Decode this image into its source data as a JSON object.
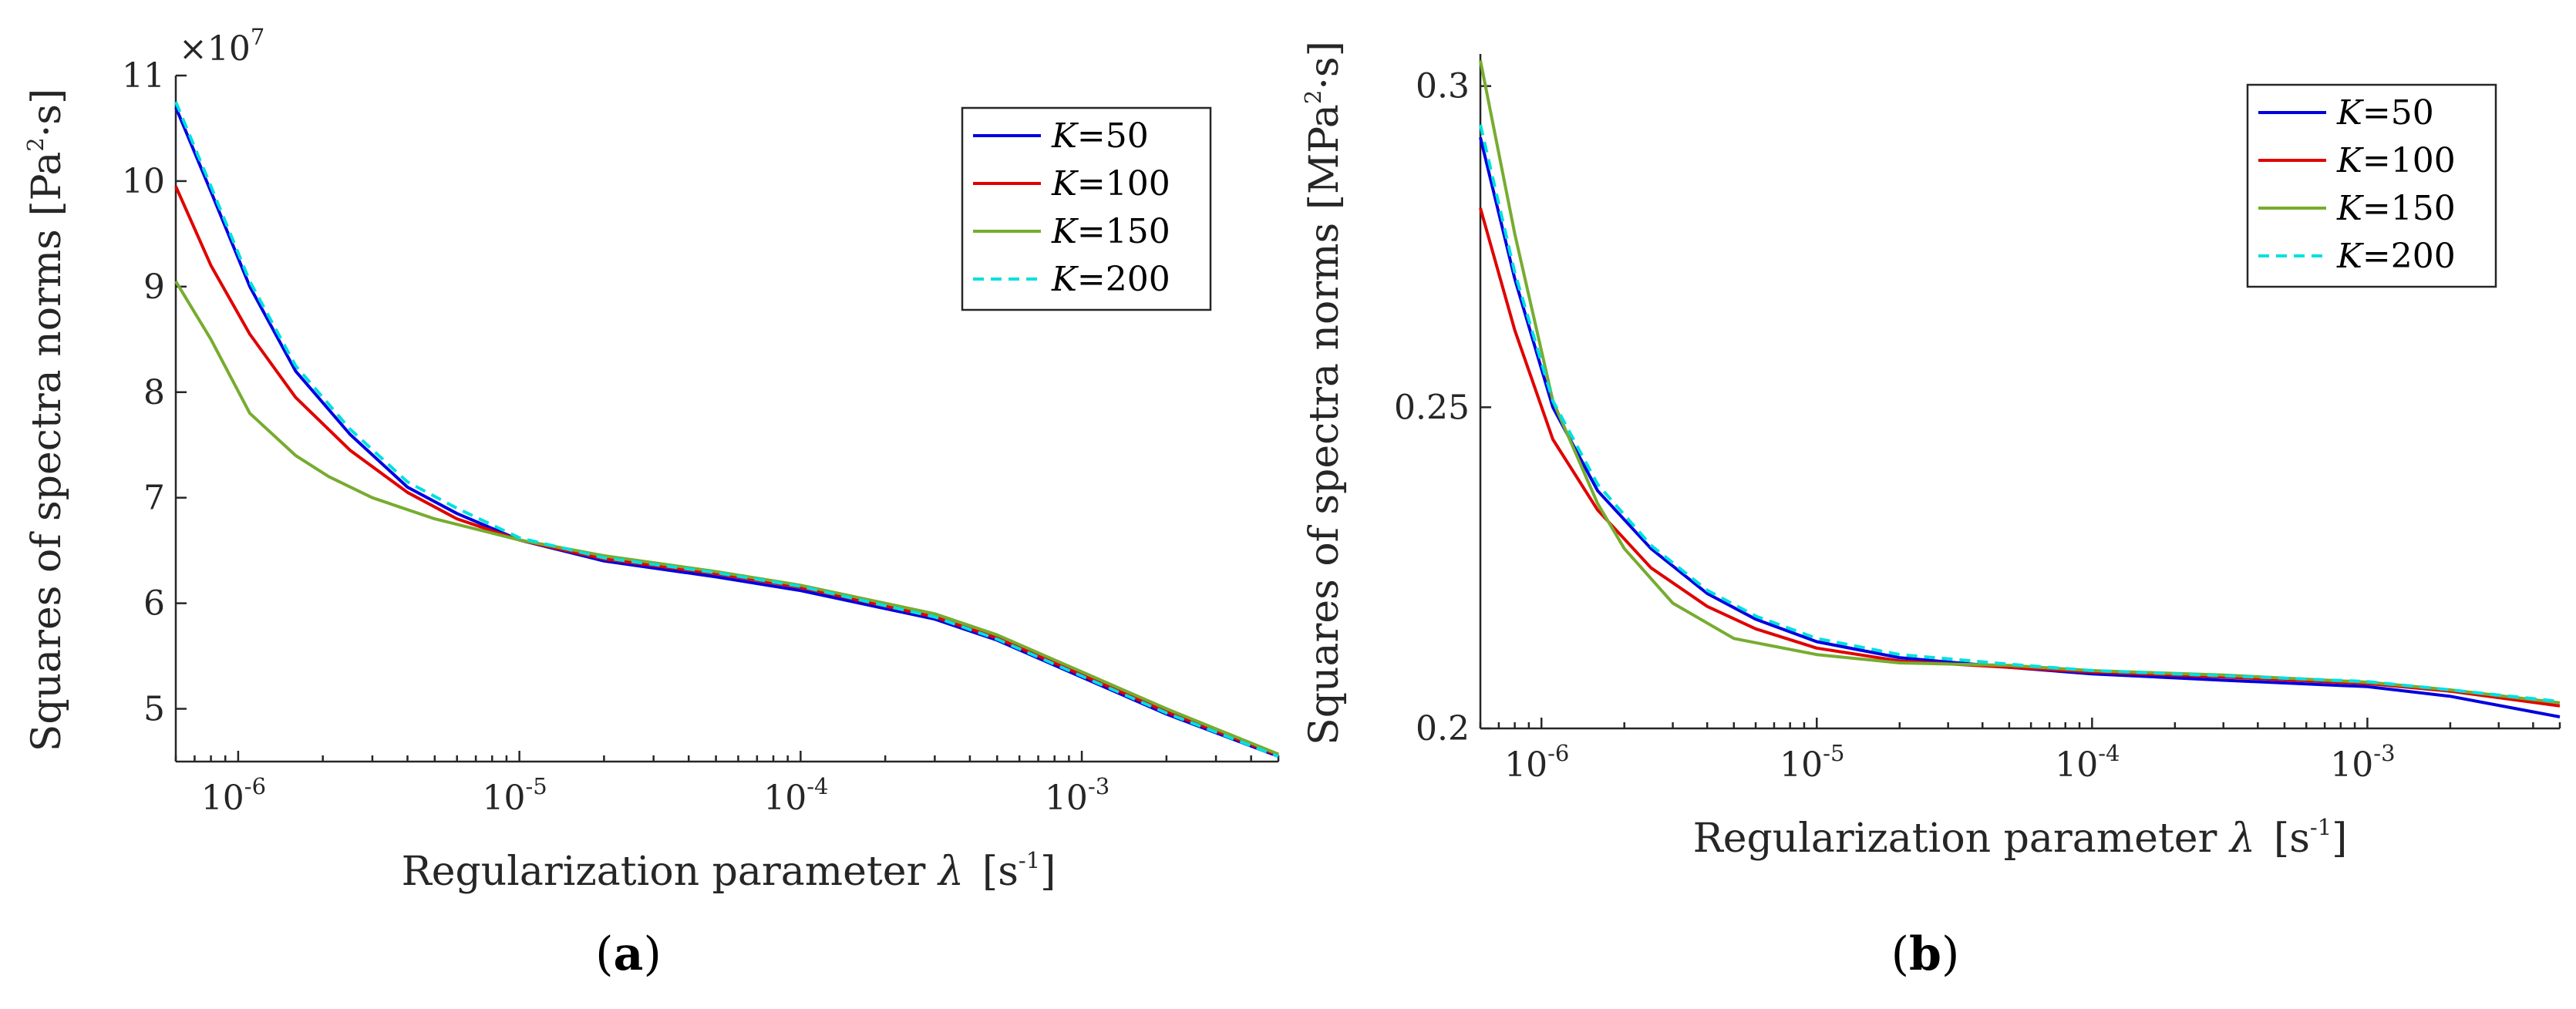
{
  "charts": [
    {
      "type": "line",
      "panel_label": "a",
      "xlabel": "Regularization parameter",
      "xsymbol": "λ",
      "xunit": "[s",
      "xunit_exp": "-1",
      "xunit_close": "]",
      "ylabel": "Squares of spectra norms [Pa",
      "ylabel_exp": "2",
      "ylabel_tail": "·s]",
      "multiplier_text": "×10",
      "multiplier_exp": "7",
      "xscale": "log",
      "xlim": [
        6e-07,
        0.005
      ],
      "ylim": [
        4.5,
        11
      ],
      "yticks": [
        {
          "v": 5,
          "label": "5"
        },
        {
          "v": 6,
          "label": "6"
        },
        {
          "v": 7,
          "label": "7"
        },
        {
          "v": 8,
          "label": "8"
        },
        {
          "v": 9,
          "label": "9"
        },
        {
          "v": 10,
          "label": "10"
        },
        {
          "v": 11,
          "label": "11"
        }
      ],
      "xticks": [
        {
          "v": 1e-06,
          "base": "10",
          "exp": "-6"
        },
        {
          "v": 1e-05,
          "base": "10",
          "exp": "-5"
        },
        {
          "v": 0.0001,
          "base": "10",
          "exp": "-4"
        },
        {
          "v": 0.001,
          "base": "10",
          "exp": "-3"
        }
      ],
      "legend_position": "top-right",
      "series": [
        {
          "k": "K",
          "eq": "=50",
          "color": "#0000e0",
          "dash": "",
          "x": [
            6e-07,
            8e-07,
            1.1e-06,
            1.6e-06,
            2.5e-06,
            4e-06,
            6e-06,
            1e-05,
            2e-05,
            5e-05,
            0.0001,
            0.0003,
            0.0005,
            0.001,
            0.002,
            0.005
          ],
          "y": [
            10.7,
            9.9,
            9.0,
            8.2,
            7.6,
            7.1,
            6.85,
            6.6,
            6.4,
            6.25,
            6.12,
            5.85,
            5.65,
            5.3,
            4.95,
            4.55
          ]
        },
        {
          "k": "K",
          "eq": "=100",
          "color": "#e00000",
          "dash": "",
          "x": [
            6e-07,
            8e-07,
            1.1e-06,
            1.6e-06,
            2.5e-06,
            4e-06,
            6e-06,
            1e-05,
            2e-05,
            5e-05,
            0.0001,
            0.0003,
            0.0005,
            0.001,
            0.002,
            0.005
          ],
          "y": [
            9.95,
            9.2,
            8.55,
            7.95,
            7.45,
            7.05,
            6.8,
            6.6,
            6.42,
            6.28,
            6.15,
            5.87,
            5.67,
            5.32,
            4.97,
            4.56
          ]
        },
        {
          "k": "K",
          "eq": "=150",
          "color": "#77ac30",
          "dash": "",
          "x": [
            6e-07,
            8e-07,
            1.1e-06,
            1.6e-06,
            2.1e-06,
            3e-06,
            5e-06,
            1e-05,
            2e-05,
            5e-05,
            0.0001,
            0.0003,
            0.0005,
            0.001,
            0.002,
            0.005
          ],
          "y": [
            9.05,
            8.5,
            7.8,
            7.4,
            7.2,
            7.0,
            6.8,
            6.6,
            6.45,
            6.3,
            6.17,
            5.9,
            5.7,
            5.35,
            5.0,
            4.57
          ]
        },
        {
          "k": "K",
          "eq": "=200",
          "color": "#00e0e0",
          "dash": "14 9",
          "x": [
            6e-07,
            8e-07,
            1.1e-06,
            1.6e-06,
            2.5e-06,
            4e-06,
            6e-06,
            1e-05,
            2e-05,
            5e-05,
            0.0001,
            0.0003,
            0.0005,
            0.001,
            0.002,
            0.005
          ],
          "y": [
            10.75,
            9.95,
            9.05,
            8.25,
            7.65,
            7.15,
            6.9,
            6.62,
            6.43,
            6.29,
            6.16,
            5.87,
            5.66,
            5.31,
            4.96,
            4.55
          ]
        }
      ]
    },
    {
      "type": "line",
      "panel_label": "b",
      "xlabel": "Regularization parameter",
      "xsymbol": "λ",
      "xunit": "[s",
      "xunit_exp": "-1",
      "xunit_close": "]",
      "ylabel": "Squares of spectra norms [MPa",
      "ylabel_exp": "2",
      "ylabel_tail": "·s]",
      "xscale": "log",
      "xlim": [
        6e-07,
        0.005
      ],
      "ylim": [
        0.2,
        0.305
      ],
      "yticks": [
        {
          "v": 0.2,
          "label": "0.2"
        },
        {
          "v": 0.25,
          "label": "0.25"
        },
        {
          "v": 0.3,
          "label": "0.3"
        }
      ],
      "xticks": [
        {
          "v": 1e-06,
          "base": "10",
          "exp": "-6"
        },
        {
          "v": 1e-05,
          "base": "10",
          "exp": "-5"
        },
        {
          "v": 0.0001,
          "base": "10",
          "exp": "-4"
        },
        {
          "v": 0.001,
          "base": "10",
          "exp": "-3"
        }
      ],
      "legend_position": "top-right",
      "series": [
        {
          "k": "K",
          "eq": "=50",
          "color": "#0000e0",
          "dash": "",
          "x": [
            6e-07,
            8e-07,
            1.1e-06,
            1.6e-06,
            2.5e-06,
            4e-06,
            6e-06,
            1e-05,
            2e-05,
            5e-05,
            0.0001,
            0.0003,
            0.001,
            0.002,
            0.005
          ],
          "y": [
            0.292,
            0.27,
            0.25,
            0.237,
            0.228,
            0.221,
            0.217,
            0.2135,
            0.211,
            0.2095,
            0.2085,
            0.2075,
            0.2065,
            0.205,
            0.2018
          ]
        },
        {
          "k": "K",
          "eq": "=100",
          "color": "#e00000",
          "dash": "",
          "x": [
            6e-07,
            8e-07,
            1.1e-06,
            1.6e-06,
            2.5e-06,
            4e-06,
            6e-06,
            1e-05,
            2e-05,
            5e-05,
            0.0001,
            0.0003,
            0.001,
            0.002,
            0.005
          ],
          "y": [
            0.281,
            0.262,
            0.245,
            0.234,
            0.225,
            0.219,
            0.2155,
            0.2125,
            0.2105,
            0.2095,
            0.2088,
            0.208,
            0.207,
            0.2058,
            0.2035
          ]
        },
        {
          "k": "K",
          "eq": "=150",
          "color": "#77ac30",
          "dash": "",
          "x": [
            6e-07,
            8e-07,
            1.1e-06,
            1.6e-06,
            2e-06,
            3e-06,
            5e-06,
            1e-05,
            2e-05,
            5e-05,
            0.0001,
            0.0003,
            0.001,
            0.002,
            0.005
          ],
          "y": [
            0.304,
            0.277,
            0.251,
            0.235,
            0.228,
            0.2195,
            0.214,
            0.2115,
            0.2102,
            0.2098,
            0.209,
            0.2083,
            0.2072,
            0.206,
            0.204
          ]
        },
        {
          "k": "K",
          "eq": "=200",
          "color": "#00e0e0",
          "dash": "14 9",
          "x": [
            6e-07,
            8e-07,
            1.1e-06,
            1.6e-06,
            2.5e-06,
            4e-06,
            6e-06,
            1e-05,
            2e-05,
            5e-05,
            0.0001,
            0.0003,
            0.001,
            0.002,
            0.005
          ],
          "y": [
            0.294,
            0.271,
            0.251,
            0.238,
            0.2285,
            0.2215,
            0.2175,
            0.214,
            0.2115,
            0.21,
            0.209,
            0.2082,
            0.2073,
            0.206,
            0.2042
          ]
        }
      ]
    }
  ],
  "chart_data": [
    {
      "type": "line",
      "title": "(a)",
      "xlabel": "Regularization parameter λ [s-1]",
      "ylabel": "Squares of spectra norms [Pa2·s]",
      "y_multiplier": "×10^7",
      "xscale": "log",
      "xlim": [
        6e-07,
        0.005
      ],
      "ylim": [
        4.5,
        11
      ],
      "legend": [
        "K=50",
        "K=100",
        "K=150",
        "K=200"
      ],
      "legend_position": "top-right",
      "series": [
        {
          "name": "K=50",
          "x": [
            6e-07,
            8e-07,
            1.1e-06,
            1.6e-06,
            2.5e-06,
            4e-06,
            6e-06,
            1e-05,
            2e-05,
            5e-05,
            0.0001,
            0.0003,
            0.0005,
            0.001,
            0.002,
            0.005
          ],
          "y": [
            10.7,
            9.9,
            9.0,
            8.2,
            7.6,
            7.1,
            6.85,
            6.6,
            6.4,
            6.25,
            6.12,
            5.85,
            5.65,
            5.3,
            4.95,
            4.55
          ]
        },
        {
          "name": "K=100",
          "x": [
            6e-07,
            8e-07,
            1.1e-06,
            1.6e-06,
            2.5e-06,
            4e-06,
            6e-06,
            1e-05,
            2e-05,
            5e-05,
            0.0001,
            0.0003,
            0.0005,
            0.001,
            0.002,
            0.005
          ],
          "y": [
            9.95,
            9.2,
            8.55,
            7.95,
            7.45,
            7.05,
            6.8,
            6.6,
            6.42,
            6.28,
            6.15,
            5.87,
            5.67,
            5.32,
            4.97,
            4.56
          ]
        },
        {
          "name": "K=150",
          "x": [
            6e-07,
            8e-07,
            1.1e-06,
            1.6e-06,
            2.1e-06,
            3e-06,
            5e-06,
            1e-05,
            2e-05,
            5e-05,
            0.0001,
            0.0003,
            0.0005,
            0.001,
            0.002,
            0.005
          ],
          "y": [
            9.05,
            8.5,
            7.8,
            7.4,
            7.2,
            7.0,
            6.8,
            6.6,
            6.45,
            6.3,
            6.17,
            5.9,
            5.7,
            5.35,
            5.0,
            4.57
          ]
        },
        {
          "name": "K=200",
          "x": [
            6e-07,
            8e-07,
            1.1e-06,
            1.6e-06,
            2.5e-06,
            4e-06,
            6e-06,
            1e-05,
            2e-05,
            5e-05,
            0.0001,
            0.0003,
            0.0005,
            0.001,
            0.002,
            0.005
          ],
          "y": [
            10.75,
            9.95,
            9.05,
            8.25,
            7.65,
            7.15,
            6.9,
            6.62,
            6.43,
            6.29,
            6.16,
            5.87,
            5.66,
            5.31,
            4.96,
            4.55
          ]
        }
      ]
    },
    {
      "type": "line",
      "title": "(b)",
      "xlabel": "Regularization parameter λ [s-1]",
      "ylabel": "Squares of spectra norms [MPa2·s]",
      "xscale": "log",
      "xlim": [
        6e-07,
        0.005
      ],
      "ylim": [
        0.2,
        0.305
      ],
      "legend": [
        "K=50",
        "K=100",
        "K=150",
        "K=200"
      ],
      "legend_position": "top-right",
      "series": [
        {
          "name": "K=50",
          "x": [
            6e-07,
            8e-07,
            1.1e-06,
            1.6e-06,
            2.5e-06,
            4e-06,
            6e-06,
            1e-05,
            2e-05,
            5e-05,
            0.0001,
            0.0003,
            0.001,
            0.002,
            0.005
          ],
          "y": [
            0.292,
            0.27,
            0.25,
            0.237,
            0.228,
            0.221,
            0.217,
            0.2135,
            0.211,
            0.2095,
            0.2085,
            0.2075,
            0.2065,
            0.205,
            0.2018
          ]
        },
        {
          "name": "K=100",
          "x": [
            6e-07,
            8e-07,
            1.1e-06,
            1.6e-06,
            2.5e-06,
            4e-06,
            6e-06,
            1e-05,
            2e-05,
            5e-05,
            0.0001,
            0.0003,
            0.001,
            0.002,
            0.005
          ],
          "y": [
            0.281,
            0.262,
            0.245,
            0.234,
            0.225,
            0.219,
            0.2155,
            0.2125,
            0.2105,
            0.2095,
            0.2088,
            0.208,
            0.207,
            0.2058,
            0.2035
          ]
        },
        {
          "name": "K=150",
          "x": [
            6e-07,
            8e-07,
            1.1e-06,
            1.6e-06,
            2e-06,
            3e-06,
            5e-06,
            1e-05,
            2e-05,
            5e-05,
            0.0001,
            0.0003,
            0.001,
            0.002,
            0.005
          ],
          "y": [
            0.304,
            0.277,
            0.251,
            0.235,
            0.228,
            0.2195,
            0.214,
            0.2115,
            0.2102,
            0.2098,
            0.209,
            0.2083,
            0.2072,
            0.206,
            0.204
          ]
        },
        {
          "name": "K=200",
          "x": [
            6e-07,
            8e-07,
            1.1e-06,
            1.6e-06,
            2.5e-06,
            4e-06,
            6e-06,
            1e-05,
            2e-05,
            5e-05,
            0.0001,
            0.0003,
            0.001,
            0.002,
            0.005
          ],
          "y": [
            0.294,
            0.271,
            0.251,
            0.238,
            0.2285,
            0.2215,
            0.2175,
            0.214,
            0.2115,
            0.21,
            0.209,
            0.2082,
            0.2073,
            0.206,
            0.2042
          ]
        }
      ]
    }
  ]
}
